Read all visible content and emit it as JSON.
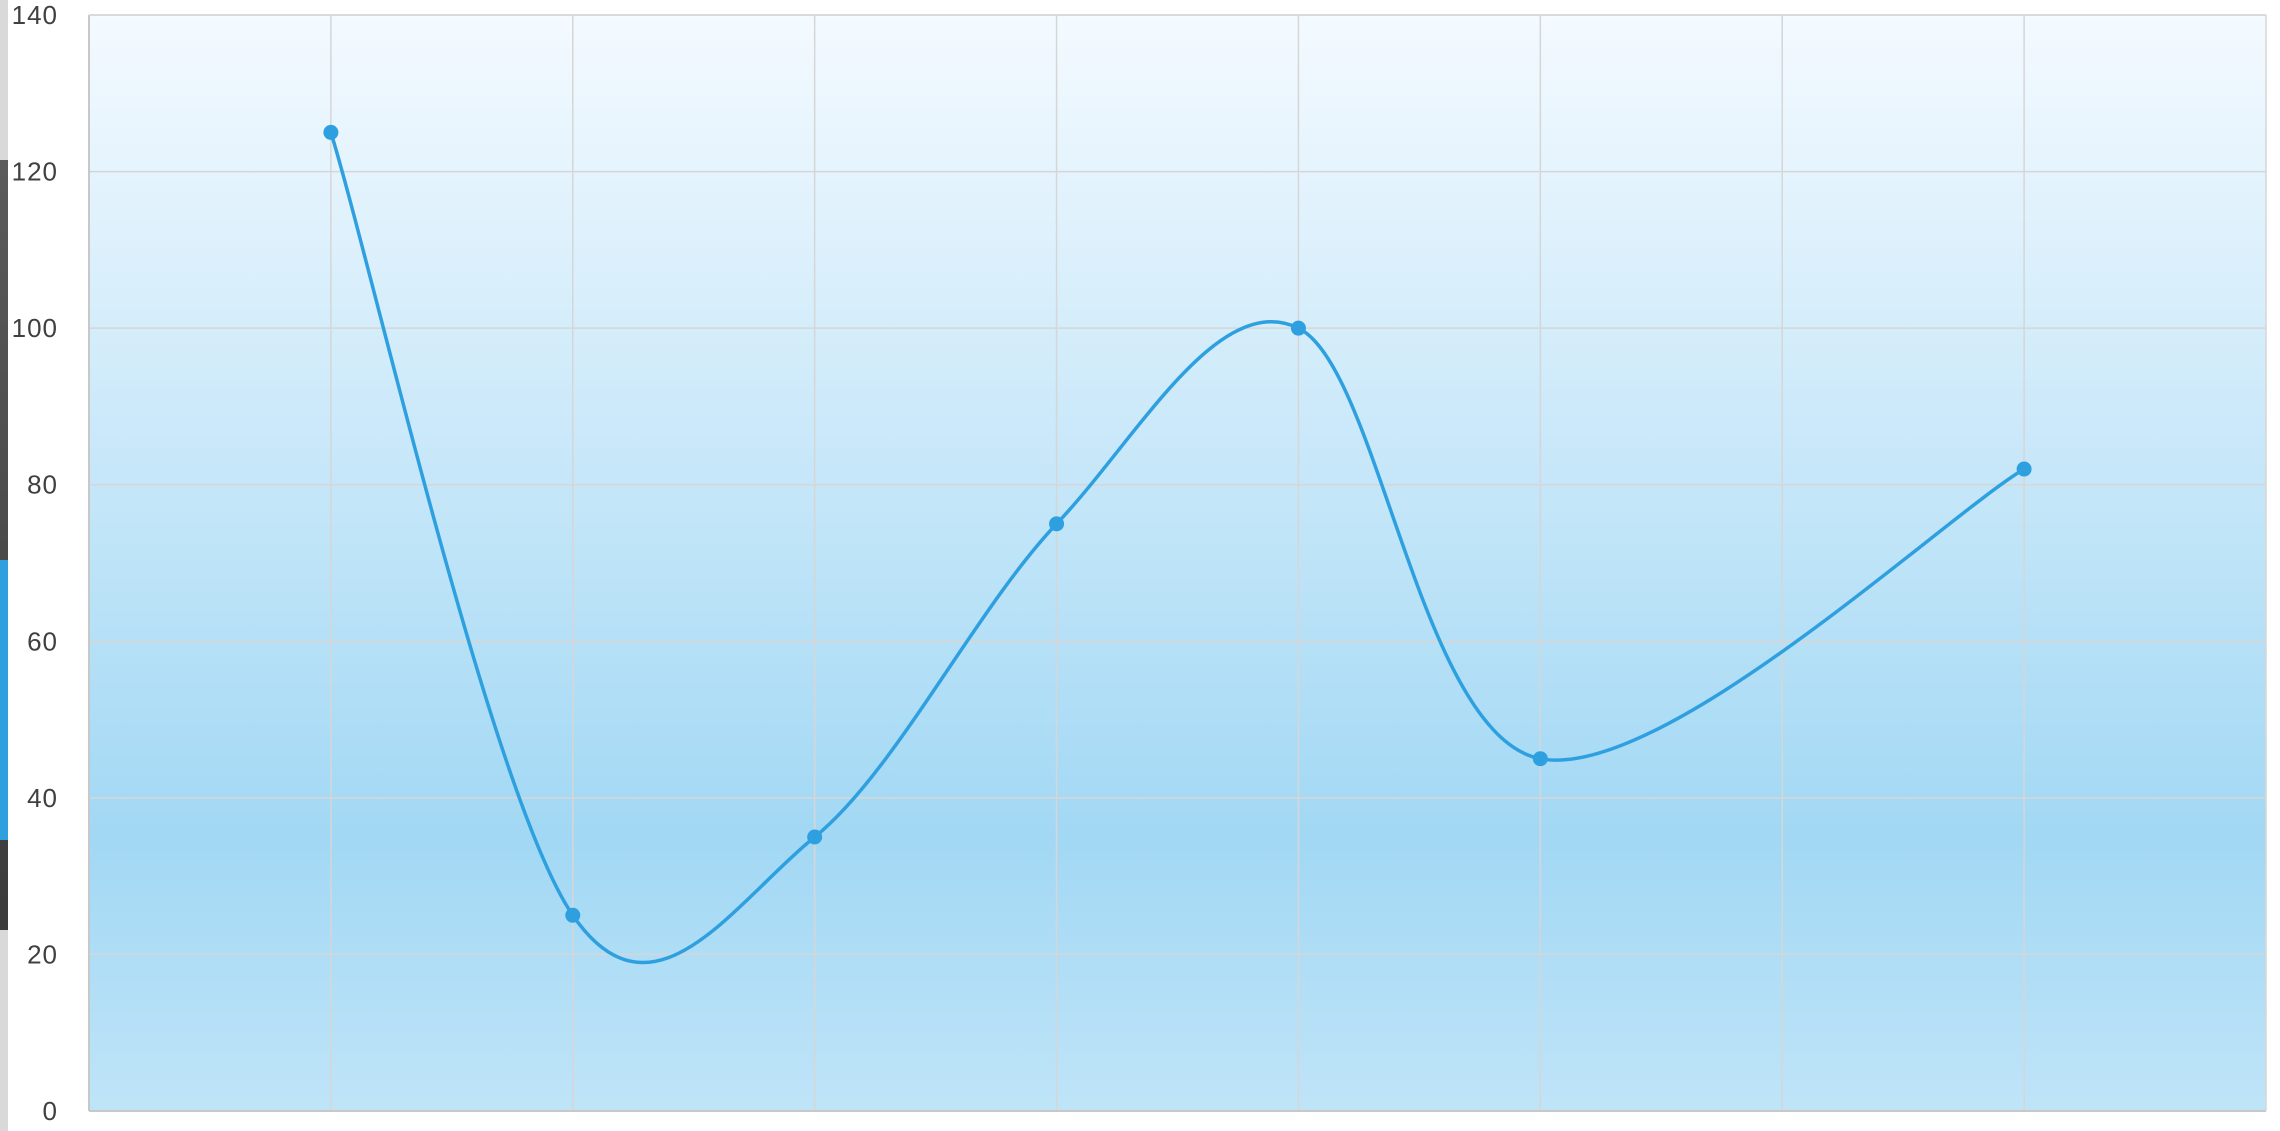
{
  "chart_data": {
    "type": "line",
    "smooth": true,
    "title": "",
    "xlabel": "",
    "ylabel": "",
    "x": [
      1,
      2,
      3,
      4,
      5,
      6,
      7,
      8
    ],
    "series": [
      {
        "values": [
          125,
          25,
          35,
          75,
          100,
          45,
          null,
          82
        ],
        "color": "#2ea0e0"
      }
    ],
    "ylim": [
      0,
      140
    ],
    "yticks": [
      0,
      20,
      40,
      60,
      80,
      100,
      120,
      140
    ],
    "xlim": [
      0,
      9
    ],
    "grid": true,
    "legend": "none",
    "colors": {
      "line": "#2ea0e0",
      "grid": "#d6d6d6",
      "background_top": "#f4faff",
      "background_mid": "#a2d8f4",
      "background_bottom": "#bfe4f8"
    }
  }
}
